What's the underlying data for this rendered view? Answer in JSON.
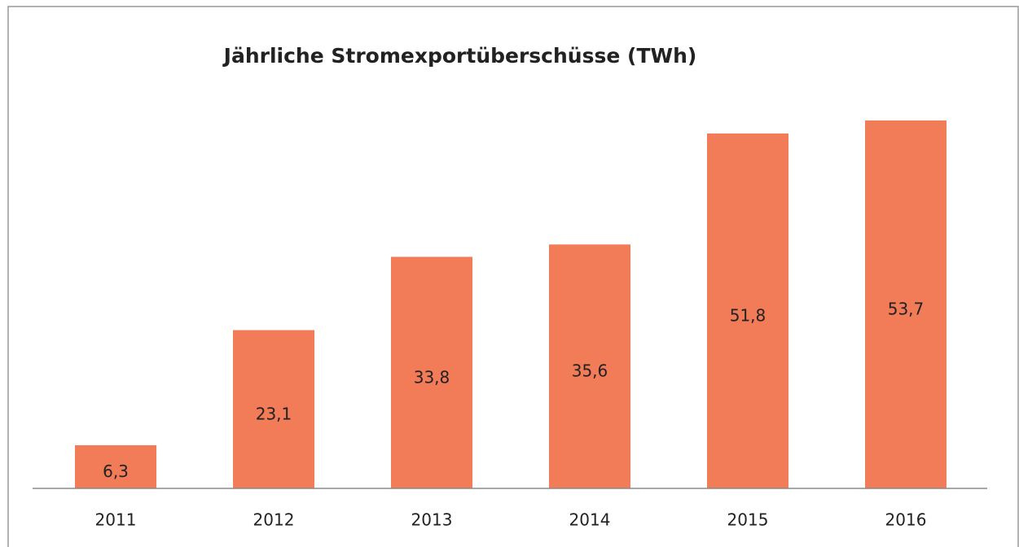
{
  "chart_data": {
    "type": "bar",
    "title": "Jährliche Stromexportüberschüsse (TWh)",
    "categories": [
      "2011",
      "2012",
      "2013",
      "2014",
      "2015",
      "2016"
    ],
    "values": [
      6.3,
      23.1,
      33.8,
      35.6,
      51.8,
      53.7
    ],
    "value_labels": [
      "6,3",
      "23,1",
      "33,8",
      "35,6",
      "51,8",
      "53,7"
    ],
    "color": "#f27b58"
  }
}
